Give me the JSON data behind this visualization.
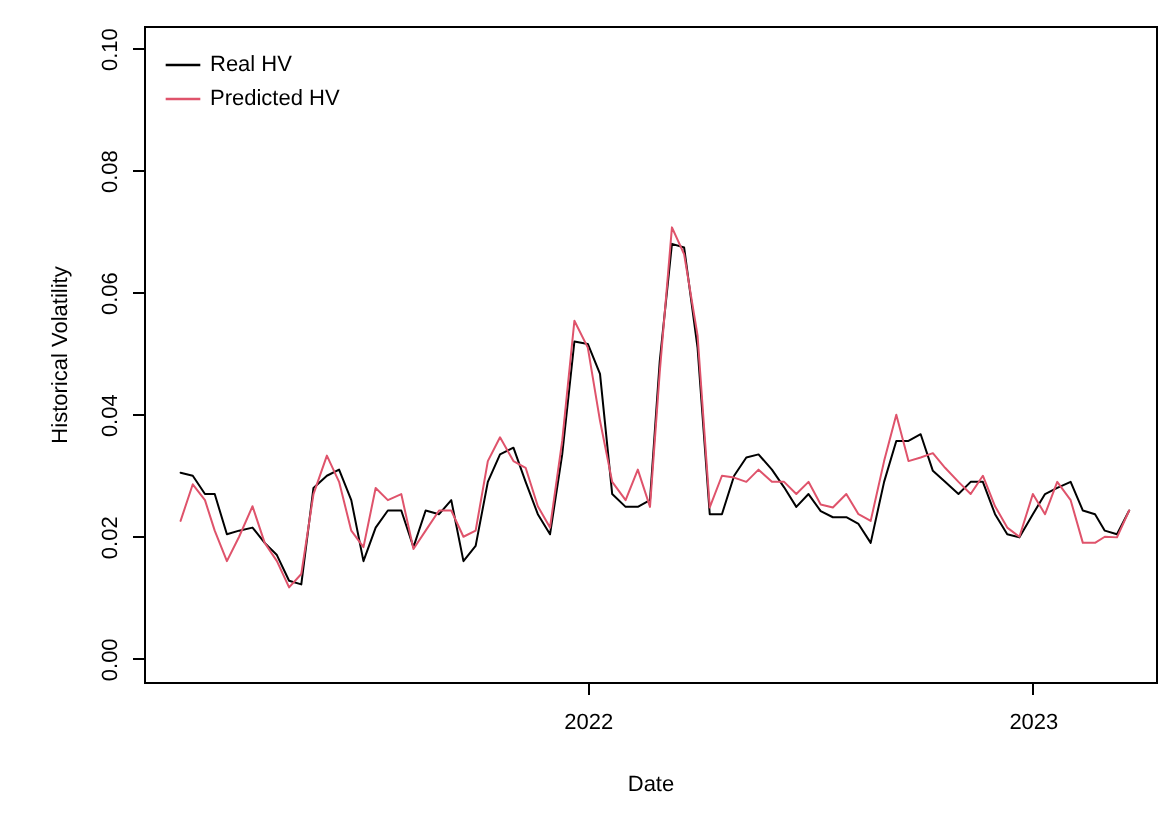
{
  "chart_data": {
    "type": "line",
    "xlabel": "Date",
    "ylabel": "Historical Volatility",
    "x": [
      "2021-02-01",
      "2021-02-11",
      "2021-02-21",
      "2021-03-01",
      "2021-03-11",
      "2021-03-21",
      "2021-04-01",
      "2021-04-11",
      "2021-04-21",
      "2021-05-01",
      "2021-05-11",
      "2021-05-21",
      "2021-06-01",
      "2021-06-11",
      "2021-06-21",
      "2021-07-01",
      "2021-07-11",
      "2021-07-21",
      "2021-08-01",
      "2021-08-11",
      "2021-08-21",
      "2021-09-01",
      "2021-09-11",
      "2021-09-21",
      "2021-10-01",
      "2021-10-11",
      "2021-10-21",
      "2021-11-01",
      "2021-11-11",
      "2021-11-21",
      "2021-12-01",
      "2021-12-11",
      "2021-12-21",
      "2022-01-01",
      "2022-01-11",
      "2022-01-21",
      "2022-02-01",
      "2022-02-11",
      "2022-02-21",
      "2022-03-01",
      "2022-03-11",
      "2022-03-21",
      "2022-04-01",
      "2022-04-11",
      "2022-04-21",
      "2022-05-01",
      "2022-05-11",
      "2022-05-21",
      "2022-06-01",
      "2022-06-11",
      "2022-06-21",
      "2022-07-01",
      "2022-07-11",
      "2022-07-21",
      "2022-08-01",
      "2022-08-11",
      "2022-08-21",
      "2022-09-01",
      "2022-09-11",
      "2022-09-21",
      "2022-10-01",
      "2022-10-11",
      "2022-10-21",
      "2022-11-01",
      "2022-11-11",
      "2022-11-21",
      "2022-12-01",
      "2022-12-11",
      "2022-12-21",
      "2023-01-01",
      "2023-01-11",
      "2023-01-21",
      "2023-02-01",
      "2023-02-11",
      "2023-02-21",
      "2023-03-01",
      "2023-03-11",
      "2023-03-21"
    ],
    "series": [
      {
        "name": "Real HV",
        "color": "#000000",
        "values": [
          0.0305,
          0.03,
          0.027,
          0.027,
          0.0204,
          0.021,
          0.0215,
          0.019,
          0.017,
          0.0128,
          0.0122,
          0.028,
          0.03,
          0.031,
          0.026,
          0.016,
          0.0215,
          0.0243,
          0.0243,
          0.0183,
          0.0243,
          0.0237,
          0.026,
          0.016,
          0.0185,
          0.029,
          0.0335,
          0.0346,
          0.029,
          0.0237,
          0.0204,
          0.0335,
          0.052,
          0.0516,
          0.0467,
          0.027,
          0.0249,
          0.0249,
          0.026,
          0.0488,
          0.068,
          0.0674,
          0.051,
          0.0237,
          0.0237,
          0.03,
          0.033,
          0.0335,
          0.031,
          0.0281,
          0.0249,
          0.027,
          0.0242,
          0.0232,
          0.0232,
          0.0221,
          0.019,
          0.029,
          0.0357,
          0.0357,
          0.0368,
          0.0308,
          0.029,
          0.027,
          0.029,
          0.029,
          0.0237,
          0.0204,
          0.0199,
          0.0237,
          0.027,
          0.028,
          0.029,
          0.0243,
          0.0237,
          0.021,
          0.0204,
          0.0243
        ]
      },
      {
        "name": "Predicted HV",
        "color": "#df536b",
        "values": [
          0.0226,
          0.0286,
          0.026,
          0.021,
          0.016,
          0.02,
          0.025,
          0.019,
          0.016,
          0.0117,
          0.0139,
          0.027,
          0.0333,
          0.029,
          0.021,
          0.0183,
          0.028,
          0.026,
          0.027,
          0.018,
          0.021,
          0.0243,
          0.0243,
          0.02,
          0.021,
          0.0324,
          0.0363,
          0.0324,
          0.0313,
          0.025,
          0.0215,
          0.0357,
          0.0554,
          0.051,
          0.039,
          0.029,
          0.026,
          0.031,
          0.0249,
          0.047,
          0.0707,
          0.0663,
          0.053,
          0.0248,
          0.03,
          0.0297,
          0.029,
          0.031,
          0.029,
          0.029,
          0.027,
          0.029,
          0.0253,
          0.0248,
          0.027,
          0.0237,
          0.0226,
          0.0324,
          0.04,
          0.0324,
          0.033,
          0.0337,
          0.0313,
          0.029,
          0.027,
          0.03,
          0.025,
          0.0215,
          0.02,
          0.027,
          0.0237,
          0.029,
          0.026,
          0.019,
          0.019,
          0.02,
          0.0199,
          0.0243
        ]
      }
    ],
    "xlim": [
      "2021-01-02",
      "2023-04-12"
    ],
    "xticks": [
      {
        "value": "2022-01-01",
        "label": "2022"
      },
      {
        "value": "2023-01-01",
        "label": "2023"
      }
    ],
    "ylim": [
      -0.0038,
      0.1037
    ],
    "yticks": [
      {
        "value": 0,
        "label": "0.00"
      },
      {
        "value": 0.02,
        "label": "0.02"
      },
      {
        "value": 0.04,
        "label": "0.04"
      },
      {
        "value": 0.06,
        "label": "0.06"
      },
      {
        "value": 0.08,
        "label": "0.08"
      },
      {
        "value": 0.1,
        "label": "0.10"
      }
    ],
    "legend": "top left",
    "grid": false,
    "line_style": "solid"
  }
}
